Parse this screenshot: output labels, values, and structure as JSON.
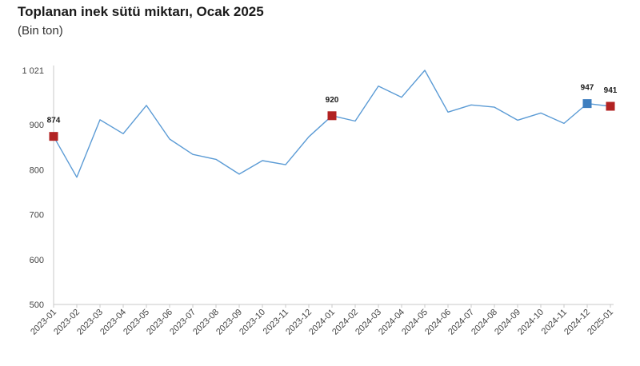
{
  "title": "Toplanan inek sütü miktarı, Ocak 2025",
  "subtitle": "(Bin ton)",
  "chart_data": {
    "type": "line",
    "title": "Toplanan inek sütü miktarı, Ocak 2025",
    "subtitle": "(Bin ton)",
    "xlabel": "",
    "ylabel": "",
    "ylim": [
      500,
      1021
    ],
    "yticks": [
      500,
      600,
      700,
      800,
      900,
      1021
    ],
    "ytick_labels": [
      "500",
      "600",
      "700",
      "800",
      "900",
      "1 021"
    ],
    "grid": false,
    "categories": [
      "2023-01",
      "2023-02",
      "2023-03",
      "2023-04",
      "2023-05",
      "2023-06",
      "2023-07",
      "2023-08",
      "2023-09",
      "2023-10",
      "2023-11",
      "2023-12",
      "2024-01",
      "2024-02",
      "2024-03",
      "2024-04",
      "2024-05",
      "2024-06",
      "2024-07",
      "2024-08",
      "2024-09",
      "2024-10",
      "2024-11",
      "2024-12",
      "2025-01"
    ],
    "series": [
      {
        "values": [
          874,
          783,
          911,
          880,
          943,
          868,
          834,
          823,
          790,
          820,
          811,
          873,
          920,
          908,
          986,
          961,
          1021,
          928,
          944,
          939,
          910,
          926,
          903,
          947,
          941
        ],
        "color": "#5b9bd5"
      }
    ],
    "markers": [
      {
        "index": 0,
        "label": "874",
        "color": "#b22222"
      },
      {
        "index": 12,
        "label": "920",
        "color": "#b22222"
      },
      {
        "index": 23,
        "label": "947",
        "color": "#3d7ebf"
      },
      {
        "index": 24,
        "label": "941",
        "color": "#b22222"
      }
    ]
  }
}
